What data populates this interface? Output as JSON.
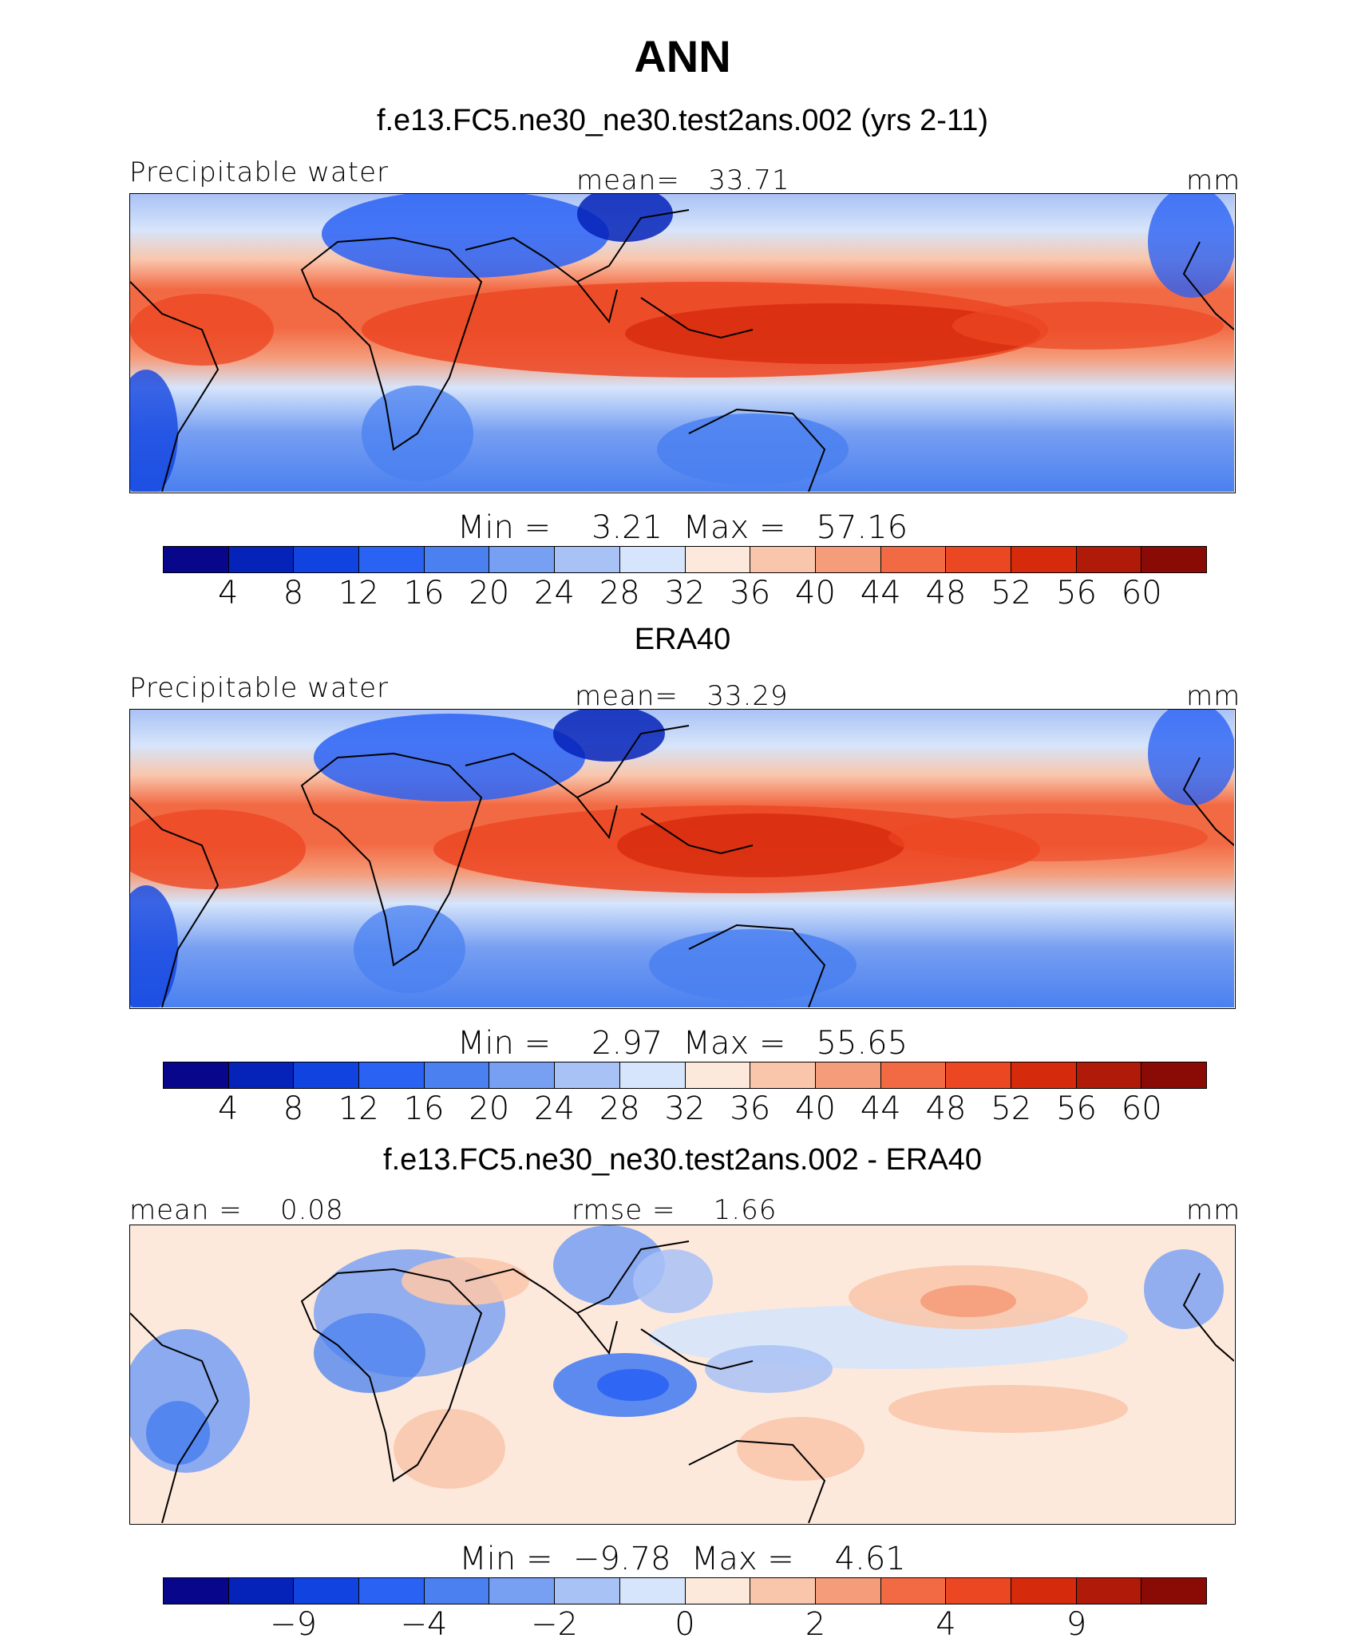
{
  "title": "ANN",
  "units": "mm",
  "palette": [
    "#08068a",
    "#0523b8",
    "#1143e0",
    "#2a62f4",
    "#4a80f0",
    "#779ff2",
    "#a9c2f6",
    "#d6e5fb",
    "#fde9dc",
    "#f9c6ac",
    "#f59c7a",
    "#f26a44",
    "#ec4723",
    "#d62a0c",
    "#b01a08",
    "#8a0a05"
  ],
  "panels": [
    {
      "id": "model",
      "title": "f.e13.FC5.ne30_ne30.test2ans.002 (yrs 2-11)",
      "left_label": "Precipitable water",
      "center_label": "mean=   33.71",
      "right_label": "mm",
      "minmax": "Min =    3.21  Max =   57.16",
      "tick_labels": [
        "4",
        "8",
        "12",
        "16",
        "20",
        "24",
        "28",
        "32",
        "36",
        "40",
        "44",
        "48",
        "52",
        "56",
        "60"
      ]
    },
    {
      "id": "obs",
      "title": "ERA40",
      "left_label": "Precipitable water",
      "center_label": "mean=   33.29",
      "right_label": "mm",
      "minmax": "Min =    2.97  Max =   55.65",
      "tick_labels": [
        "4",
        "8",
        "12",
        "16",
        "20",
        "24",
        "28",
        "32",
        "36",
        "40",
        "44",
        "48",
        "52",
        "56",
        "60"
      ]
    },
    {
      "id": "diff",
      "title": "f.e13.FC5.ne30_ne30.test2ans.002 - ERA40",
      "left_label": "mean =    0.08",
      "center_label": "rmse =    1.66",
      "right_label": "mm",
      "minmax": "Min =  −9.78  Max =    4.61",
      "tick_labels": [
        "−9",
        "−4",
        "−2",
        "0",
        "2",
        "4",
        "9"
      ]
    }
  ]
}
